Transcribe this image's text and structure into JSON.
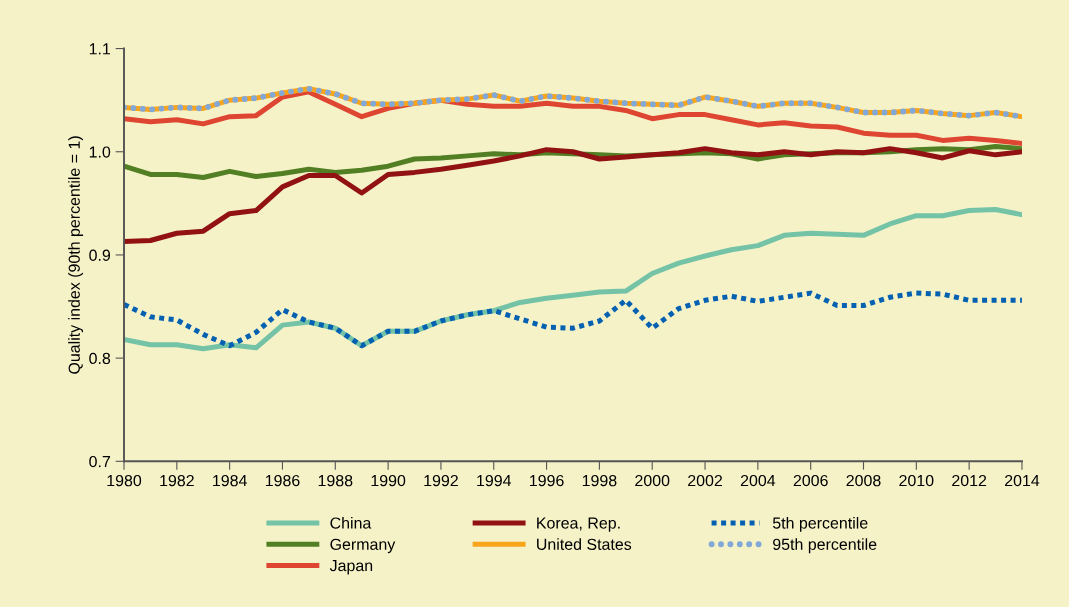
{
  "chart_data": {
    "type": "line",
    "ylabel": "Quality index (90th percentile = 1)",
    "x": [
      1980,
      1981,
      1982,
      1983,
      1984,
      1985,
      1986,
      1987,
      1988,
      1989,
      1990,
      1991,
      1992,
      1993,
      1994,
      1995,
      1996,
      1997,
      1998,
      1999,
      2000,
      2001,
      2002,
      2003,
      2004,
      2005,
      2006,
      2007,
      2008,
      2009,
      2010,
      2011,
      2012,
      2013,
      2014
    ],
    "xlim": [
      1980,
      2014
    ],
    "xticks": [
      1980,
      1982,
      1984,
      1986,
      1988,
      1990,
      1992,
      1994,
      1996,
      1998,
      2000,
      2002,
      2004,
      2006,
      2008,
      2010,
      2012,
      2014
    ],
    "ylim": [
      0.7,
      1.1
    ],
    "yticks": [
      {
        "value": 0.7,
        "label": "0.7"
      },
      {
        "value": 0.8,
        "label": "0.8"
      },
      {
        "value": 0.9,
        "label": "0.9"
      },
      {
        "value": 1.0,
        "label": "1.0"
      },
      {
        "value": 1.1,
        "label": "1.1"
      }
    ],
    "grid": false,
    "legend": "bottom",
    "marker": "none",
    "series": [
      {
        "name": "China",
        "color": "#74c3a6",
        "line_style": "solid",
        "values": [
          0.818,
          0.813,
          0.813,
          0.809,
          0.813,
          0.81,
          0.832,
          0.835,
          0.829,
          0.812,
          0.826,
          0.826,
          0.836,
          0.842,
          0.846,
          0.854,
          0.858,
          0.861,
          0.864,
          0.865,
          0.882,
          0.892,
          0.899,
          0.905,
          0.909,
          0.919,
          0.921,
          0.92,
          0.919,
          0.93,
          0.938,
          0.938,
          0.943,
          0.944,
          0.939
        ]
      },
      {
        "name": "Germany",
        "color": "#527f23",
        "line_style": "solid",
        "values": [
          0.986,
          0.978,
          0.978,
          0.975,
          0.981,
          0.976,
          0.979,
          0.983,
          0.98,
          0.982,
          0.986,
          0.993,
          0.994,
          0.996,
          0.998,
          0.997,
          0.999,
          0.998,
          0.997,
          0.996,
          0.997,
          0.998,
          0.999,
          0.998,
          0.993,
          0.997,
          0.998,
          0.999,
          0.999,
          1.0,
          1.002,
          1.003,
          1.002,
          1.005,
          1.003
        ]
      },
      {
        "name": "Japan",
        "color": "#de4632",
        "line_style": "solid",
        "values": [
          1.032,
          1.029,
          1.031,
          1.027,
          1.034,
          1.035,
          1.053,
          1.058,
          1.046,
          1.034,
          1.042,
          1.047,
          1.05,
          1.046,
          1.044,
          1.044,
          1.047,
          1.044,
          1.044,
          1.04,
          1.032,
          1.036,
          1.036,
          1.031,
          1.026,
          1.028,
          1.025,
          1.024,
          1.018,
          1.016,
          1.016,
          1.011,
          1.013,
          1.011,
          1.008
        ]
      },
      {
        "name": "Korea, Rep.",
        "color": "#921214",
        "line_style": "solid",
        "values": [
          0.913,
          0.914,
          0.921,
          0.923,
          0.94,
          0.943,
          0.966,
          0.977,
          0.977,
          0.96,
          0.978,
          0.98,
          0.983,
          0.987,
          0.991,
          0.996,
          1.002,
          1.0,
          0.993,
          0.995,
          0.997,
          0.999,
          1.003,
          0.999,
          0.997,
          1.0,
          0.997,
          1.0,
          0.999,
          1.003,
          0.999,
          0.994,
          1.001,
          0.997,
          1.0
        ]
      },
      {
        "name": "United States",
        "color": "#f9a51c",
        "line_style": "solid",
        "values": [
          1.043,
          1.041,
          1.043,
          1.042,
          1.05,
          1.052,
          1.057,
          1.061,
          1.056,
          1.047,
          1.046,
          1.047,
          1.05,
          1.051,
          1.055,
          1.049,
          1.054,
          1.052,
          1.049,
          1.047,
          1.046,
          1.045,
          1.053,
          1.049,
          1.044,
          1.047,
          1.047,
          1.043,
          1.038,
          1.038,
          1.04,
          1.037,
          1.035,
          1.038,
          1.034
        ]
      },
      {
        "name": "5th percentile",
        "color": "#0461b1",
        "line_style": "dashed",
        "values": [
          0.852,
          0.84,
          0.837,
          0.823,
          0.812,
          0.825,
          0.847,
          0.835,
          0.829,
          0.812,
          0.826,
          0.826,
          0.836,
          0.842,
          0.846,
          0.838,
          0.83,
          0.829,
          0.836,
          0.856,
          0.829,
          0.848,
          0.856,
          0.86,
          0.855,
          0.859,
          0.863,
          0.851,
          0.851,
          0.859,
          0.863,
          0.862,
          0.856,
          0.856,
          0.856
        ]
      },
      {
        "name": "95th percentile",
        "color": "#82a8d8",
        "line_style": "dotted",
        "values": [
          1.043,
          1.041,
          1.043,
          1.042,
          1.05,
          1.052,
          1.057,
          1.061,
          1.056,
          1.047,
          1.046,
          1.047,
          1.05,
          1.051,
          1.055,
          1.049,
          1.054,
          1.052,
          1.049,
          1.047,
          1.046,
          1.045,
          1.053,
          1.049,
          1.044,
          1.047,
          1.047,
          1.043,
          1.038,
          1.038,
          1.04,
          1.037,
          1.035,
          1.038,
          1.034
        ]
      }
    ]
  }
}
